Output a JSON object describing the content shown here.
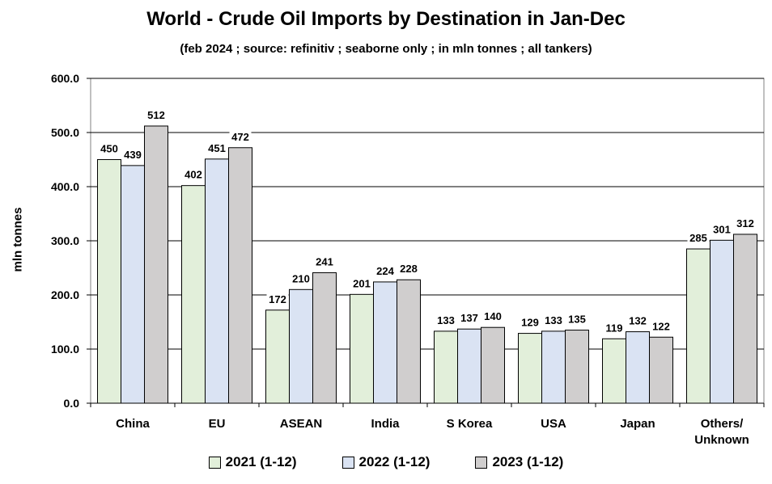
{
  "chart_data": {
    "type": "bar",
    "title": "World - Crude Oil Imports by Destination in Jan-Dec",
    "subtitle": "(feb 2024 ; source: refinitiv ; seaborne only ; in mln tonnes ; all tankers)",
    "xlabel": "",
    "ylabel": "mln tonnes",
    "ylim": [
      0,
      600
    ],
    "yticks": [
      "0.0",
      "100.0",
      "200.0",
      "300.0",
      "400.0",
      "500.0",
      "600.0"
    ],
    "ytick_values": [
      0,
      100,
      200,
      300,
      400,
      500,
      600
    ],
    "grid": true,
    "legend_position": "bottom",
    "categories": [
      "China",
      "EU",
      "ASEAN",
      "India",
      "S Korea",
      "USA",
      "Japan",
      "Others/\nUnknown"
    ],
    "series": [
      {
        "name": "2021 (1-12)",
        "color": "#e2efda",
        "values": [
          450,
          402,
          172,
          201,
          133,
          129,
          119,
          285
        ]
      },
      {
        "name": "2022 (1-12)",
        "color": "#dae3f3",
        "values": [
          439,
          451,
          210,
          224,
          137,
          133,
          132,
          301
        ]
      },
      {
        "name": "2023 (1-12)",
        "color": "#d0cece",
        "values": [
          512,
          472,
          241,
          228,
          140,
          135,
          122,
          312
        ]
      }
    ]
  }
}
